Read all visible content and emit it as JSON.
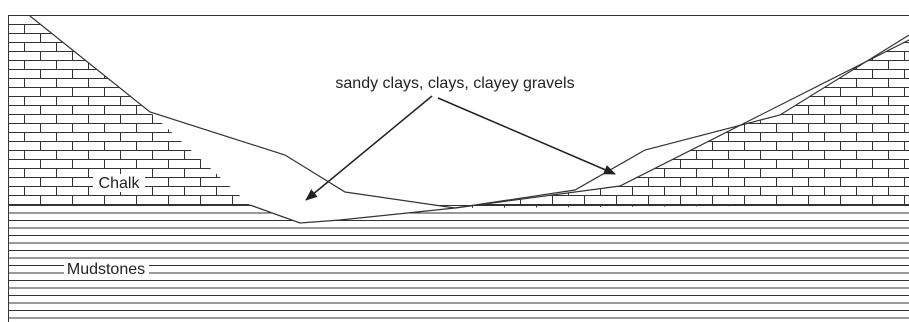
{
  "labels": {
    "fill": "sandy clays, clays, clayey gravels",
    "chalk": "Chalk",
    "mudstones": "Mudstones"
  }
}
